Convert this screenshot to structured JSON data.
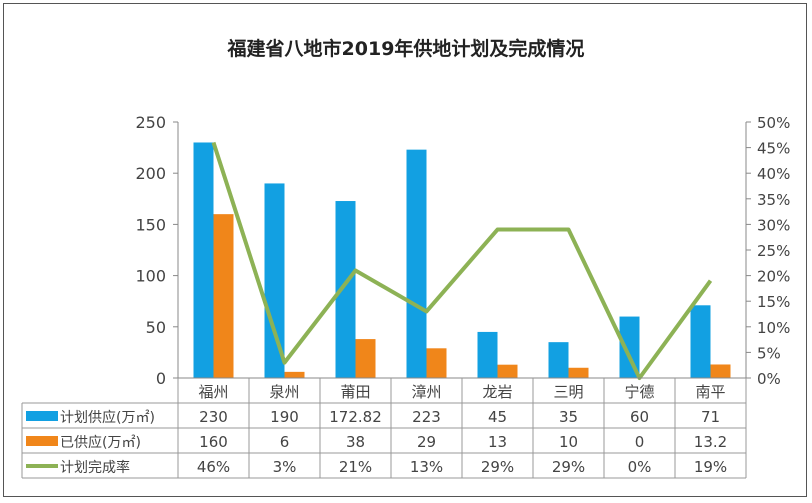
{
  "chart_data": {
    "type": "bar",
    "title": "福建省八地市2019年供地计划及完成情况",
    "categories": [
      "福州",
      "泉州",
      "莆田",
      "漳州",
      "龙岩",
      "三明",
      "宁德",
      "南平"
    ],
    "series": [
      {
        "name": "计划供应(万㎡)",
        "type": "bar",
        "axis": "left",
        "color": "#12a0e2",
        "values": [
          230,
          190,
          172.82,
          223,
          45,
          35,
          60,
          71
        ],
        "labels": [
          "230",
          "190",
          "172.82",
          "223",
          "45",
          "35",
          "60",
          "71"
        ]
      },
      {
        "name": "已供应(万㎡)",
        "type": "bar",
        "axis": "left",
        "color": "#f0861a",
        "values": [
          160,
          6,
          38,
          29,
          13,
          10,
          0,
          13.2
        ],
        "labels": [
          "160",
          "6",
          "38",
          "29",
          "13",
          "10",
          "0",
          "13.2"
        ]
      },
      {
        "name": "计划完成率",
        "type": "line",
        "axis": "right",
        "color": "#8db255",
        "values": [
          46,
          3,
          21,
          13,
          29,
          29,
          0,
          19
        ],
        "labels": [
          "46%",
          "3%",
          "21%",
          "13%",
          "29%",
          "29%",
          "0%",
          "19%"
        ]
      }
    ],
    "ylim": [
      0,
      250
    ],
    "yticks": [
      "0",
      "50",
      "100",
      "150",
      "200",
      "250"
    ],
    "y2lim": [
      0,
      50
    ],
    "y2ticks": [
      "0%",
      "5%",
      "10%",
      "15%",
      "20%",
      "25%",
      "30%",
      "35%",
      "40%",
      "45%",
      "50%"
    ],
    "data_table": true,
    "grid": false
  }
}
